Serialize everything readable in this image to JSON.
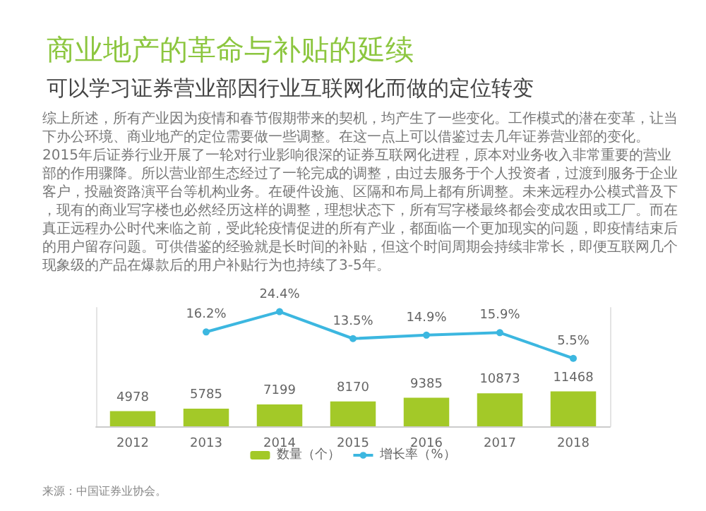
{
  "chart_data": {
    "type": "bar",
    "title": "商业地产的革命与补贴的延续",
    "subtitle": "可以学习证券营业部因行业互联网化而做的定位转变",
    "annotations": [
      "综上所述，所有产业因为疫情和春节假期带来的契机，均产生了一些变化。工作模式的潜在变革，让当下办公环境、商业地产的定位需要做一些调整。在这一点上可以借鉴过去几年证券营业部的变化。2015年后证券行业开展了一轮对行业影响很深的证券互联网化进程，原本对业务收入非常重要的营业部的作用骤降。所以营业部生态经过了一轮完成的调整，由过去服务于个人投资者，过渡到服务于企业客户，投融资路演平台等机构业务。在硬件设施、区隔和布局上都有所调整。未来远程办公模式普及下，现有的商业写字楼也必然经历这样的调整，理想状态下，所有写字楼最终都会变成农田或工厂。而在真正远程办公时代来临之前，受此轮疫情促进的所有产业，都面临一个更加现实的问题，即疫情结束后的用户留存问题。可供借鉴的经验就是长时间的补贴，但这个时间周期会持续非常长，即便互联网几个现象级的产品在爆款后的用户补贴行为也持续了3-5年。",
      "来源：中国证券业协会。"
    ],
    "categories": [
      "2012",
      "2013",
      "2014",
      "2015",
      "2016",
      "2017",
      "2018"
    ],
    "series": [
      {
        "name": "数量（个）",
        "color": "#a3c928",
        "values": [
          4978,
          5785,
          7199,
          8170,
          9385,
          10873,
          11468
        ]
      },
      {
        "name": "增长率（%）",
        "type": "line",
        "axis": "y2",
        "color": "#3cb7e0",
        "marker": "circle",
        "values": [
          null,
          16.2,
          24.4,
          13.5,
          14.9,
          15.9,
          5.5
        ],
        "value_labels": [
          null,
          "16.2%",
          "24.4%",
          "13.5%",
          "14.9%",
          "15.9%",
          "5.5%"
        ]
      }
    ],
    "ylim": [
      0,
      39000
    ],
    "y2lim": [
      -22,
      26
    ],
    "data_labels": true,
    "legend": "bottom"
  }
}
